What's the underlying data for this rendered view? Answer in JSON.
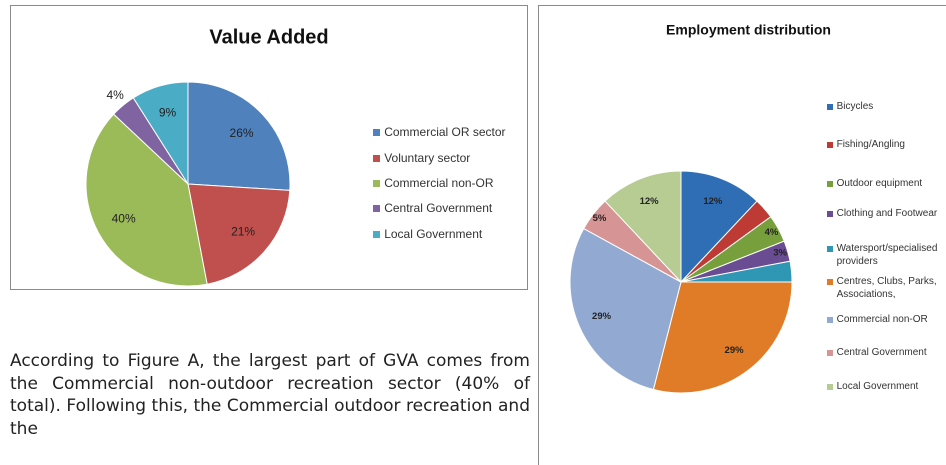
{
  "chart_data": [
    {
      "type": "pie",
      "title": "Value Added",
      "categories": [
        "Commercial OR sector",
        "Voluntary sector",
        "Commercial non-OR",
        "Central Government",
        "Local Government"
      ],
      "values": [
        26,
        21,
        40,
        4,
        9
      ],
      "value_labels": [
        "26%",
        "21%",
        "40%",
        "4%",
        "9%"
      ],
      "colors": [
        "#4f81bd",
        "#c0504d",
        "#9bbb59",
        "#8064a2",
        "#4bacc6"
      ]
    },
    {
      "type": "pie",
      "title": "Employment distribution",
      "categories": [
        "Bicycles",
        "Fishing/Angling",
        "Outdoor equipment",
        "Clothing and Footwear",
        "Watersport/specialised providers",
        "Centres, Clubs, Parks, Associations,",
        "Commercial non-OR",
        "Central Government",
        "Local Government"
      ],
      "values": [
        12,
        3,
        4,
        3,
        3,
        29,
        29,
        5,
        12
      ],
      "value_labels": [
        "12%",
        null,
        "4%",
        "3%",
        null,
        "29%",
        "29%",
        "5%",
        "12%"
      ],
      "colors": [
        "#2f6eb5",
        "#be3a34",
        "#77a03c",
        "#6a4c93",
        "#2f97b3",
        "#e07b27",
        "#92aad2",
        "#d69594",
        "#b6cc93"
      ]
    }
  ],
  "text": {
    "paragraph": "According to Figure A, the largest part of GVA comes from the Commercial non-outdoor recreation sector (40% of total). Following this, the Commercial outdoor recreation and the"
  }
}
